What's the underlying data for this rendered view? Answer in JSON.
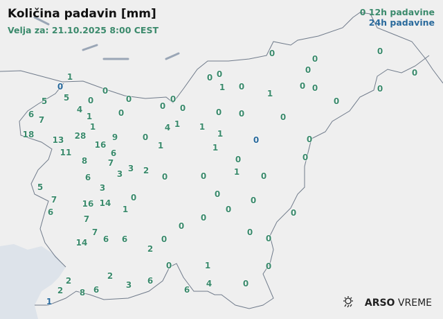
{
  "header": {
    "title": "Količina padavin [mm]",
    "valid_for": "Velja za: 21.10.2025 8:00 CEST"
  },
  "legend": {
    "sample": "0",
    "label_12h": "12h padavine",
    "label_24h": "24h padavine"
  },
  "colors": {
    "12h": "#3b8a6c",
    "24h": "#2a6a9c",
    "border": "#6f7a8a",
    "sea": "#dde3ea",
    "land": "#f3f3f3"
  },
  "branding": {
    "icon": "sun-rain-icon",
    "arso": "ARSO",
    "vreme": "VREME"
  },
  "stations": [
    {
      "v": "1",
      "t": "12h"
    },
    {
      "v": "0",
      "t": "24h"
    },
    {
      "v": "0",
      "t": "12h"
    },
    {
      "v": "5",
      "t": "12h"
    },
    {
      "v": "5",
      "t": "12h"
    },
    {
      "v": "0",
      "t": "12h"
    },
    {
      "v": "0",
      "t": "12h"
    },
    {
      "v": "0",
      "t": "12h"
    },
    {
      "v": "0",
      "t": "12h"
    },
    {
      "v": "0",
      "t": "12h"
    },
    {
      "v": "0",
      "t": "12h"
    },
    {
      "v": "0",
      "t": "12h"
    },
    {
      "v": "1",
      "t": "12h"
    },
    {
      "v": "0",
      "t": "12h"
    },
    {
      "v": "0",
      "t": "12h"
    },
    {
      "v": "0",
      "t": "12h"
    },
    {
      "v": "0",
      "t": "12h"
    },
    {
      "v": "1",
      "t": "12h"
    },
    {
      "v": "0",
      "t": "12h"
    },
    {
      "v": "0",
      "t": "12h"
    },
    {
      "v": "0",
      "t": "12h"
    },
    {
      "v": "0",
      "t": "12h"
    },
    {
      "v": "0",
      "t": "12h"
    },
    {
      "v": "0",
      "t": "12h"
    },
    {
      "v": "6",
      "t": "12h"
    },
    {
      "v": "7",
      "t": "12h"
    },
    {
      "v": "4",
      "t": "12h"
    },
    {
      "v": "1",
      "t": "12h"
    },
    {
      "v": "1",
      "t": "12h"
    },
    {
      "v": "0",
      "t": "12h"
    },
    {
      "v": "18",
      "t": "12h"
    },
    {
      "v": "13",
      "t": "12h"
    },
    {
      "v": "28",
      "t": "12h"
    },
    {
      "v": "11",
      "t": "12h"
    },
    {
      "v": "16",
      "t": "12h"
    },
    {
      "v": "9",
      "t": "12h"
    },
    {
      "v": "6",
      "t": "12h"
    },
    {
      "v": "7",
      "t": "12h"
    },
    {
      "v": "0",
      "t": "12h"
    },
    {
      "v": "1",
      "t": "12h"
    },
    {
      "v": "4",
      "t": "12h"
    },
    {
      "v": "1",
      "t": "12h"
    },
    {
      "v": "1",
      "t": "12h"
    },
    {
      "v": "1",
      "t": "12h"
    },
    {
      "v": "0",
      "t": "12h"
    },
    {
      "v": "0",
      "t": "12h"
    },
    {
      "v": "0",
      "t": "12h"
    },
    {
      "v": "1",
      "t": "12h"
    },
    {
      "v": "0",
      "t": "24h"
    },
    {
      "v": "0",
      "t": "12h"
    },
    {
      "v": "0",
      "t": "12h"
    },
    {
      "v": "0",
      "t": "12h"
    },
    {
      "v": "1",
      "t": "12h"
    },
    {
      "v": "0",
      "t": "12h"
    },
    {
      "v": "8",
      "t": "12h"
    },
    {
      "v": "3",
      "t": "12h"
    },
    {
      "v": "3",
      "t": "12h"
    },
    {
      "v": "2",
      "t": "12h"
    },
    {
      "v": "0",
      "t": "12h"
    },
    {
      "v": "0",
      "t": "12h"
    },
    {
      "v": "6",
      "t": "12h"
    },
    {
      "v": "3",
      "t": "12h"
    },
    {
      "v": "5",
      "t": "12h"
    },
    {
      "v": "7",
      "t": "12h"
    },
    {
      "v": "6",
      "t": "12h"
    },
    {
      "v": "16",
      "t": "12h"
    },
    {
      "v": "14",
      "t": "12h"
    },
    {
      "v": "0",
      "t": "12h"
    },
    {
      "v": "1",
      "t": "12h"
    },
    {
      "v": "0",
      "t": "12h"
    },
    {
      "v": "0",
      "t": "12h"
    },
    {
      "v": "0",
      "t": "12h"
    },
    {
      "v": "0",
      "t": "12h"
    },
    {
      "v": "0",
      "t": "12h"
    },
    {
      "v": "7",
      "t": "12h"
    },
    {
      "v": "7",
      "t": "12h"
    },
    {
      "v": "14",
      "t": "12h"
    },
    {
      "v": "6",
      "t": "12h"
    },
    {
      "v": "6",
      "t": "12h"
    },
    {
      "v": "0",
      "t": "12h"
    },
    {
      "v": "0",
      "t": "12h"
    },
    {
      "v": "2",
      "t": "12h"
    },
    {
      "v": "0",
      "t": "12h"
    },
    {
      "v": "0",
      "t": "12h"
    },
    {
      "v": "0",
      "t": "12h"
    },
    {
      "v": "1",
      "t": "12h"
    },
    {
      "v": "0",
      "t": "12h"
    },
    {
      "v": "2",
      "t": "12h"
    },
    {
      "v": "3",
      "t": "12h"
    },
    {
      "v": "6",
      "t": "12h"
    },
    {
      "v": "6",
      "t": "12h"
    },
    {
      "v": "4",
      "t": "12h"
    },
    {
      "v": "0",
      "t": "12h"
    },
    {
      "v": "2",
      "t": "12h"
    },
    {
      "v": "2",
      "t": "12h"
    },
    {
      "v": "8",
      "t": "12h"
    },
    {
      "v": "6",
      "t": "12h"
    },
    {
      "v": "1",
      "t": "24h"
    }
  ]
}
